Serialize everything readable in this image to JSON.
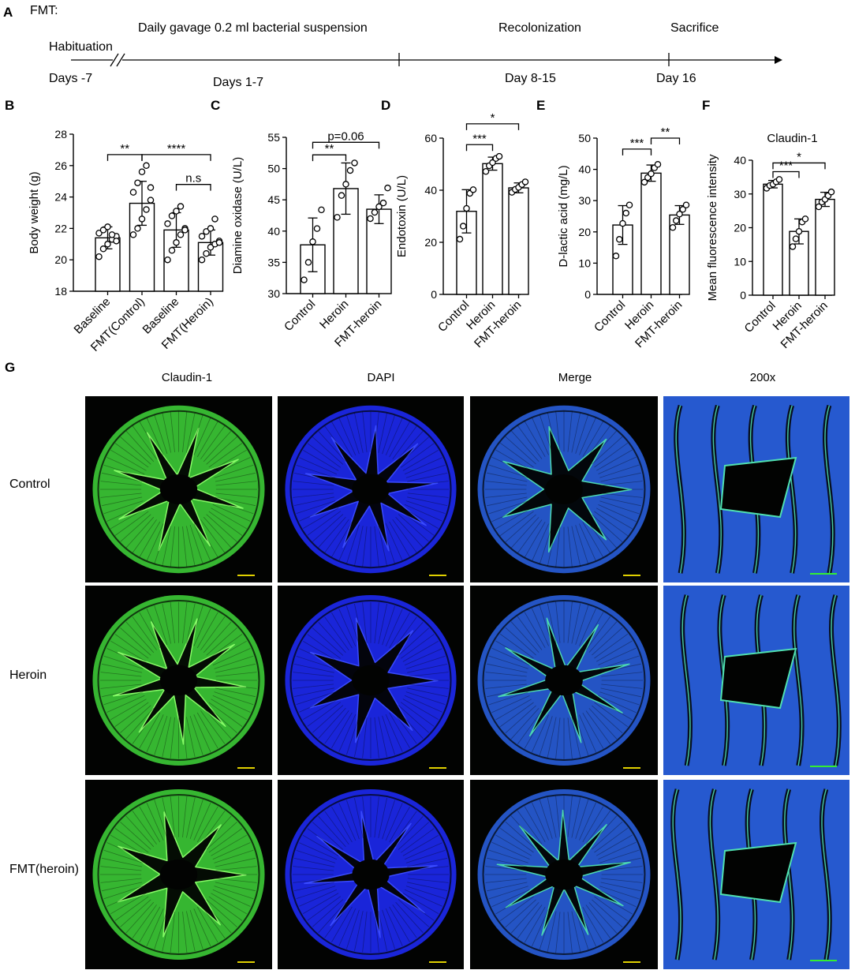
{
  "panel_letters": {
    "A": "A",
    "B": "B",
    "C": "C",
    "D": "D",
    "E": "E",
    "F": "F",
    "G": "G"
  },
  "timeline": {
    "header": "FMT:",
    "habituation": "Habituation",
    "gavage": "Daily gavage  0.2 ml bacterial suspension",
    "recolonization": "Recolonization",
    "sacrifice": "Sacrifice",
    "days_neg7": "Days -7",
    "days_1_7": "Days 1-7",
    "day_8_15": "Day 8-15",
    "day_16": "Day 16"
  },
  "chart_data": [
    {
      "id": "B",
      "type": "bar",
      "title": "",
      "ylabel": "Body weight (g)",
      "ylim": [
        18,
        28
      ],
      "yticks": [
        18,
        20,
        22,
        24,
        26,
        28
      ],
      "categories": [
        "Baseline",
        "FMT(Control)",
        "Baseline",
        "FMT(Heroin)"
      ],
      "values": [
        21.4,
        23.6,
        21.9,
        21.1
      ],
      "errors": [
        0.7,
        1.4,
        1.1,
        0.8
      ],
      "points": [
        [
          20.2,
          20.7,
          21.0,
          21.3,
          21.5,
          21.7,
          21.9,
          22.1,
          21.6,
          21.2
        ],
        [
          21.6,
          22.0,
          22.6,
          23.2,
          23.8,
          24.3,
          24.9,
          25.6,
          26.0,
          24.6
        ],
        [
          20.0,
          20.6,
          21.1,
          21.6,
          22.0,
          22.3,
          22.8,
          23.1,
          23.4,
          21.9
        ],
        [
          20.0,
          20.4,
          20.8,
          21.0,
          21.2,
          21.5,
          21.8,
          22.0,
          22.6,
          21.1
        ]
      ],
      "comparisons": [
        {
          "from": 0,
          "to": 1,
          "label": "**",
          "y": 26.7
        },
        {
          "from": 1,
          "to": 3,
          "label": "****",
          "y": 26.7
        },
        {
          "from": 2,
          "to": 3,
          "label": "n.s",
          "y": 24.8
        }
      ]
    },
    {
      "id": "C",
      "type": "bar",
      "title": "",
      "ylabel": "Diamine oxidase (U/L)",
      "ylim": [
        30,
        55
      ],
      "yticks": [
        30,
        35,
        40,
        45,
        50,
        55
      ],
      "categories": [
        "Control",
        "Heroin",
        "FMT-heroin"
      ],
      "values": [
        37.8,
        46.8,
        43.5
      ],
      "errors": [
        4.3,
        4.1,
        2.3
      ],
      "points": [
        [
          32.2,
          35.0,
          38.3,
          40.4,
          43.4
        ],
        [
          42.2,
          45.7,
          47.5,
          49.7,
          50.9
        ],
        [
          42.0,
          43.0,
          43.9,
          44.5,
          46.9
        ]
      ],
      "comparisons": [
        {
          "from": 0,
          "to": 1,
          "label": "**",
          "y": 52.2
        },
        {
          "from": 0,
          "to": 2,
          "label": "p=0.06",
          "y": 54.2
        }
      ]
    },
    {
      "id": "D",
      "type": "bar",
      "title": "",
      "ylabel": "Endotoxin (U/L)",
      "ylim": [
        0,
        60
      ],
      "yticks": [
        0,
        20,
        40,
        60
      ],
      "categories": [
        "Control",
        "Heroin",
        "FMT-heroin"
      ],
      "values": [
        31.9,
        50.2,
        40.9
      ],
      "errors": [
        8.3,
        2.5,
        1.9
      ],
      "points": [
        [
          21.2,
          26.2,
          33.0,
          38.8,
          40.2
        ],
        [
          47.2,
          49.4,
          50.6,
          52.2,
          53.0
        ],
        [
          39.2,
          40.3,
          41.1,
          42.2,
          43.2
        ]
      ],
      "comparisons": [
        {
          "from": 0,
          "to": 1,
          "label": "***",
          "y": 57.5
        },
        {
          "from": 0,
          "to": 2,
          "label": "*",
          "y": 65.5
        }
      ]
    },
    {
      "id": "E",
      "type": "bar",
      "title": "",
      "ylabel": "D-lactic acid (mg/L)",
      "ylim": [
        0,
        50
      ],
      "yticks": [
        0,
        10,
        20,
        30,
        40,
        50
      ],
      "categories": [
        "Control",
        "Heroin",
        "FMT-heroin"
      ],
      "values": [
        22.2,
        38.8,
        25.4
      ],
      "errors": [
        6.2,
        2.6,
        3.0
      ],
      "points": [
        [
          12.3,
          17.6,
          22.7,
          26.0,
          28.6
        ],
        [
          35.9,
          37.4,
          38.6,
          40.5,
          41.6
        ],
        [
          21.4,
          23.6,
          25.7,
          27.2,
          28.6
        ]
      ],
      "comparisons": [
        {
          "from": 0,
          "to": 1,
          "label": "***",
          "y": 46.5
        },
        {
          "from": 1,
          "to": 2,
          "label": "**",
          "y": 50.0
        }
      ]
    },
    {
      "id": "F",
      "type": "bar",
      "title": "Claudin-1",
      "ylabel": "Mean fluorescence intensity",
      "ylim": [
        0,
        40
      ],
      "yticks": [
        0,
        10,
        20,
        30,
        40
      ],
      "categories": [
        "Control",
        "Heroin",
        "FMT-heroin"
      ],
      "values": [
        32.9,
        18.9,
        28.4
      ],
      "errors": [
        1.1,
        3.7,
        2.1
      ],
      "points": [
        [
          31.7,
          32.5,
          32.9,
          33.6,
          34.3
        ],
        [
          14.4,
          16.7,
          18.9,
          21.7,
          22.6
        ],
        [
          26.2,
          27.6,
          28.4,
          29.5,
          30.6
        ]
      ],
      "comparisons": [
        {
          "from": 0,
          "to": 1,
          "label": "***",
          "y": 36.6
        },
        {
          "from": 0,
          "to": 2,
          "label": "*",
          "y": 39.2
        }
      ]
    }
  ],
  "micrographs": {
    "columns": [
      "Claudin-1",
      "DAPI",
      "Merge",
      "200x"
    ],
    "rows": [
      "Control",
      "Heroin",
      "FMT(heroin)"
    ],
    "channel_colors": {
      "claudin": "#3fd63a",
      "dapi": "#1e2cff",
      "merge_blue": "#2a63e6",
      "merge_green": "#4fe0b0",
      "background": "#020302"
    }
  }
}
